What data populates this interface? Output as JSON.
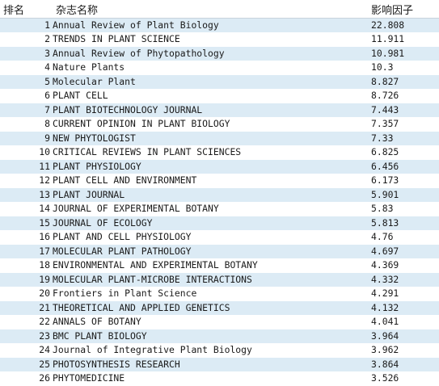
{
  "table": {
    "headers": {
      "rank": "排名",
      "name": "杂志名称",
      "impact": "影响因子"
    },
    "rows": [
      {
        "rank": "1",
        "name": "Annual Review of Plant Biology",
        "impact": "22.808"
      },
      {
        "rank": "2",
        "name": "TRENDS IN PLANT SCIENCE",
        "impact": "11.911"
      },
      {
        "rank": "3",
        "name": "Annual Review of Phytopathology",
        "impact": "10.981"
      },
      {
        "rank": "4",
        "name": "Nature Plants",
        "impact": "10.3"
      },
      {
        "rank": "5",
        "name": "Molecular Plant",
        "impact": "8.827"
      },
      {
        "rank": "6",
        "name": "PLANT CELL",
        "impact": "8.726"
      },
      {
        "rank": "7",
        "name": "PLANT BIOTECHNOLOGY JOURNAL",
        "impact": "7.443"
      },
      {
        "rank": "8",
        "name": "CURRENT OPINION IN PLANT BIOLOGY",
        "impact": "7.357"
      },
      {
        "rank": "9",
        "name": "NEW PHYTOLOGIST",
        "impact": "7.33"
      },
      {
        "rank": "10",
        "name": "CRITICAL REVIEWS IN PLANT SCIENCES",
        "impact": "6.825"
      },
      {
        "rank": "11",
        "name": "PLANT PHYSIOLOGY",
        "impact": "6.456"
      },
      {
        "rank": "12",
        "name": "PLANT CELL AND ENVIRONMENT",
        "impact": "6.173"
      },
      {
        "rank": "13",
        "name": "PLANT JOURNAL",
        "impact": "5.901"
      },
      {
        "rank": "14",
        "name": "JOURNAL OF EXPERIMENTAL BOTANY",
        "impact": "5.83"
      },
      {
        "rank": "15",
        "name": "JOURNAL OF ECOLOGY",
        "impact": "5.813"
      },
      {
        "rank": "16",
        "name": "PLANT AND CELL PHYSIOLOGY",
        "impact": "4.76"
      },
      {
        "rank": "17",
        "name": "MOLECULAR PLANT PATHOLOGY",
        "impact": "4.697"
      },
      {
        "rank": "18",
        "name": "ENVIRONMENTAL AND EXPERIMENTAL BOTANY",
        "impact": "4.369"
      },
      {
        "rank": "19",
        "name": "MOLECULAR PLANT-MICROBE INTERACTIONS",
        "impact": "4.332"
      },
      {
        "rank": "20",
        "name": "Frontiers in Plant Science",
        "impact": "4.291"
      },
      {
        "rank": "21",
        "name": "THEORETICAL AND APPLIED GENETICS",
        "impact": "4.132"
      },
      {
        "rank": "22",
        "name": "ANNALS OF BOTANY",
        "impact": "4.041"
      },
      {
        "rank": "23",
        "name": "BMC PLANT BIOLOGY",
        "impact": "3.964"
      },
      {
        "rank": "24",
        "name": "Journal of Integrative Plant Biology",
        "impact": "3.962"
      },
      {
        "rank": "25",
        "name": "PHOTOSYNTHESIS RESEARCH",
        "impact": "3.864"
      },
      {
        "rank": "26",
        "name": "PHYTOMEDICINE",
        "impact": "3.526"
      }
    ]
  }
}
